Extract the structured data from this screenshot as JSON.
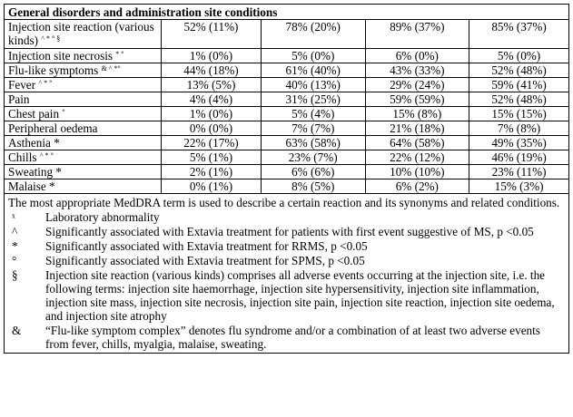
{
  "header": "General disorders and administration site conditions",
  "rows": [
    {
      "name": "Injection site reaction (various kinds)",
      "marks": "^ * ° §",
      "v": [
        "52% (11%)",
        "78% (20%)",
        "89% (37%)",
        "85% (37%)"
      ]
    },
    {
      "name": "Injection site necrosis",
      "marks": "* °",
      "v": [
        "1% (0%)",
        "5% (0%)",
        "6% (0%)",
        "5% (0%)"
      ]
    },
    {
      "name": "Flu-like symptoms",
      "marks": "& ^ *°",
      "v": [
        "44% (18%)",
        "61% (40%)",
        "43% (33%)",
        "52% (48%)"
      ]
    },
    {
      "name": "Fever",
      "marks": "^ * °",
      "v": [
        "13% (5%)",
        "40% (13%)",
        "29% (24%)",
        "59% (41%)"
      ]
    },
    {
      "name": "Pain",
      "marks": "",
      "v": [
        "4% (4%)",
        "31% (25%)",
        "59% (59%)",
        "52% (48%)"
      ]
    },
    {
      "name": "Chest pain",
      "marks": "°",
      "v": [
        "1% (0%)",
        "5% (4%)",
        "15% (8%)",
        "15% (15%)"
      ]
    },
    {
      "name": "Peripheral oedema",
      "marks": "",
      "v": [
        "0% (0%)",
        "7% (7%)",
        "21% (18%)",
        "7% (8%)"
      ]
    },
    {
      "name": "Asthenia *",
      "marks": "",
      "v": [
        "22% (17%)",
        "63% (58%)",
        "64% (58%)",
        "49% (35%)"
      ]
    },
    {
      "name": "Chills",
      "marks": "^ * °",
      "v": [
        "5% (1%)",
        "23% (7%)",
        "22% (12%)",
        "46% (19%)"
      ]
    },
    {
      "name": "Sweating *",
      "marks": "",
      "v": [
        "2% (1%)",
        "6% (6%)",
        "10% (10%)",
        "23% (11%)"
      ]
    },
    {
      "name": "Malaise *",
      "marks": "",
      "v": [
        "0% (1%)",
        "8% (5%)",
        "6% (2%)",
        "15% (3%)"
      ]
    }
  ],
  "notes": {
    "intro": "The most appropriate MedDRA term is used to describe a certain reaction and its synonyms and related conditions.",
    "footnotes": [
      {
        "sym": "ˣ",
        "text": "Laboratory abnormality"
      },
      {
        "sym": "^",
        "text": "Significantly associated with Extavia treatment for patients with first event suggestive of MS, p <0.05"
      },
      {
        "sym": "*",
        "text": "Significantly associated with Extavia treatment for RRMS, p <0.05"
      },
      {
        "sym": "°",
        "text": "Significantly associated with Extavia treatment for SPMS, p <0.05"
      },
      {
        "sym": "§",
        "text": "Injection site reaction (various kinds) comprises all adverse events occurring at the injection site, i.e. the following terms: injection site haemorrhage, injection site hypersensitivity, injection site inflammation, injection site mass, injection site necrosis, injection site pain, injection site reaction, injection site oedema, and injection site atrophy"
      },
      {
        "sym": "&",
        "text": "“Flu-like symptom complex” denotes flu syndrome and/or a combination of at least two adverse events from fever, chills, myalgia, malaise, sweating."
      }
    ]
  }
}
